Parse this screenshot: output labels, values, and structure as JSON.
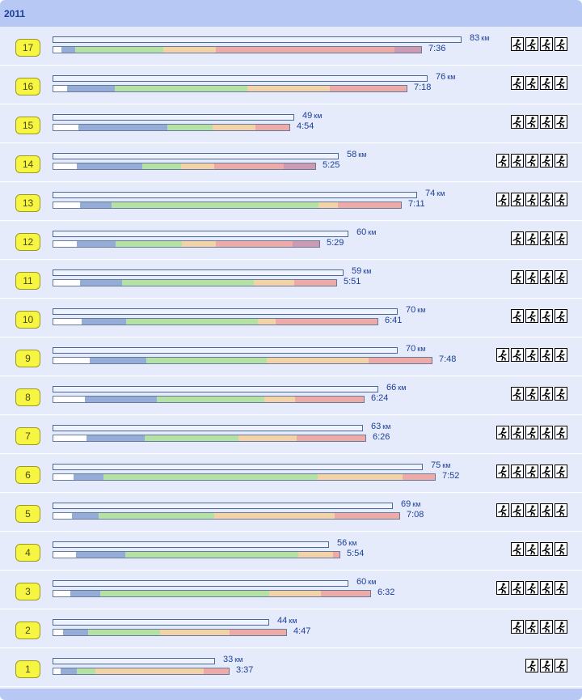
{
  "year": "2011",
  "unit": "км",
  "colors": {
    "white": "#ffffff",
    "blue": "#94acd8",
    "green": "#b4e2a4",
    "orange": "#f2d2a6",
    "red": "#eeaaa6",
    "purple": "#cc9ab2"
  },
  "rows": [
    {
      "num": "17",
      "km": "83",
      "time": "7:36",
      "runners": 4,
      "dist": 83,
      "segs": [
        10,
        17,
        110,
        65,
        222,
        33
      ]
    },
    {
      "num": "16",
      "km": "76",
      "time": "7:18",
      "runners": 4,
      "dist": 76,
      "segs": [
        17,
        59,
        165,
        103,
        95,
        0
      ]
    },
    {
      "num": "15",
      "km": "49",
      "time": "4:54",
      "runners": 4,
      "dist": 49,
      "segs": [
        31,
        111,
        56,
        54,
        42,
        0
      ]
    },
    {
      "num": "14",
      "km": "58",
      "time": "5:25",
      "runners": 5,
      "dist": 58,
      "segs": [
        29,
        82,
        48,
        41,
        87,
        39
      ]
    },
    {
      "num": "13",
      "km": "74",
      "time": "7:11",
      "runners": 5,
      "dist": 74,
      "segs": [
        33,
        39,
        258,
        24,
        78,
        0
      ]
    },
    {
      "num": "12",
      "km": "60",
      "time": "5:29",
      "runners": 4,
      "dist": 60,
      "segs": [
        29,
        48,
        83,
        42,
        96,
        33
      ]
    },
    {
      "num": "11",
      "km": "59",
      "time": "5:51",
      "runners": 4,
      "dist": 59,
      "segs": [
        33,
        52,
        164,
        51,
        52,
        0
      ]
    },
    {
      "num": "10",
      "km": "70",
      "time": "6:41",
      "runners": 4,
      "dist": 70,
      "segs": [
        35,
        55,
        164,
        22,
        127,
        0
      ]
    },
    {
      "num": "9",
      "km": "70",
      "time": "7:48",
      "runners": 5,
      "dist": 70,
      "segs": [
        45,
        70,
        150,
        127,
        78,
        0
      ]
    },
    {
      "num": "8",
      "km": "66",
      "time": "6:24",
      "runners": 4,
      "dist": 66,
      "segs": [
        39,
        90,
        133,
        39,
        85,
        0
      ]
    },
    {
      "num": "7",
      "km": "63",
      "time": "6:26",
      "runners": 5,
      "dist": 63,
      "segs": [
        41,
        73,
        116,
        73,
        85,
        0
      ]
    },
    {
      "num": "6",
      "km": "75",
      "time": "7:52",
      "runners": 5,
      "dist": 75,
      "segs": [
        25,
        37,
        266,
        106,
        40,
        0
      ]
    },
    {
      "num": "5",
      "km": "69",
      "time": "7:08",
      "runners": 5,
      "dist": 69,
      "segs": [
        23,
        33,
        144,
        150,
        80,
        0
      ]
    },
    {
      "num": "4",
      "km": "56",
      "time": "5:54",
      "runners": 4,
      "dist": 56,
      "segs": [
        28,
        61,
        216,
        43,
        8,
        0
      ]
    },
    {
      "num": "3",
      "km": "60",
      "time": "6:32",
      "runners": 5,
      "dist": 60,
      "segs": [
        21,
        37,
        210,
        65,
        61,
        0
      ]
    },
    {
      "num": "2",
      "km": "44",
      "time": "4:47",
      "runners": 4,
      "dist": 44,
      "segs": [
        12,
        31,
        90,
        87,
        70,
        0
      ]
    },
    {
      "num": "1",
      "km": "33",
      "time": "3:37",
      "runners": 3,
      "dist": 33,
      "segs": [
        9,
        20,
        23,
        136,
        31,
        0
      ]
    }
  ]
}
